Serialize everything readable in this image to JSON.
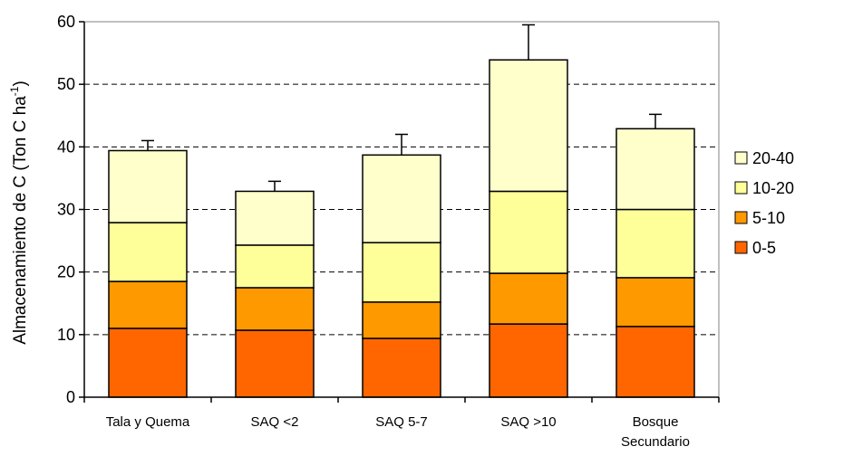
{
  "chart_data": {
    "type": "bar",
    "stacked": true,
    "title": "",
    "xlabel": "",
    "ylabel": "Almacenamiento de C (Ton C ha⁻¹)",
    "ylabel_main": "Almacenamiento de C (Ton C ha",
    "ylabel_sup": "-1",
    "ylabel_end": ")",
    "ylim": [
      0,
      60
    ],
    "yticks": [
      0,
      10,
      20,
      30,
      40,
      50,
      60
    ],
    "grid": "horizontal dashed",
    "legend_position": "right",
    "categories": [
      [
        "Tala y Quema"
      ],
      [
        "SAQ <2"
      ],
      [
        "SAQ 5-7"
      ],
      [
        "SAQ >10"
      ],
      [
        "Bosque",
        "Secundario"
      ]
    ],
    "series": [
      {
        "name": "0-5",
        "color": "#FF6600",
        "values": [
          11.0,
          10.7,
          9.4,
          11.7,
          11.3
        ]
      },
      {
        "name": "5-10",
        "color": "#FF9900",
        "values": [
          7.5,
          6.8,
          5.8,
          8.1,
          7.8
        ]
      },
      {
        "name": "10-20",
        "color": "#FFFF99",
        "values": [
          9.4,
          6.8,
          9.5,
          13.1,
          10.9
        ]
      },
      {
        "name": "20-40",
        "color": "#FFFFCC",
        "values": [
          11.5,
          8.6,
          14.0,
          21.0,
          12.9
        ]
      }
    ],
    "error_bars": [
      41.0,
      34.5,
      42.0,
      59.5,
      45.2
    ]
  }
}
